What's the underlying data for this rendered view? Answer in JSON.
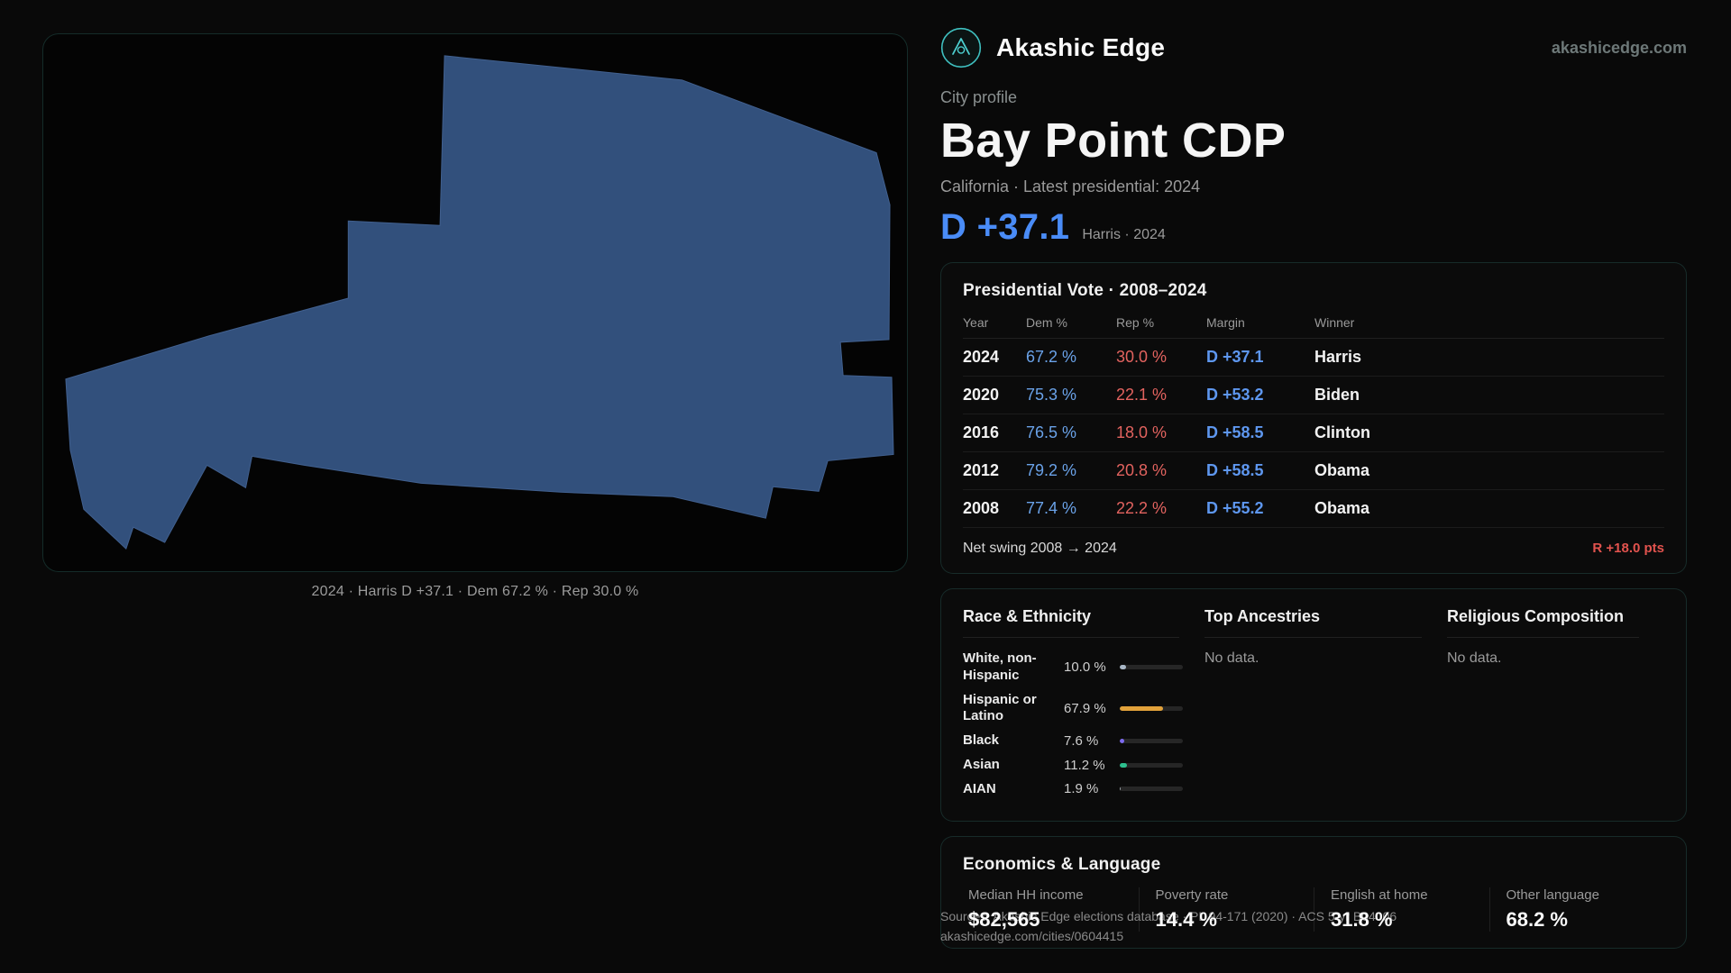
{
  "brand": {
    "name": "Akashic Edge",
    "domain": "akashicedge.com"
  },
  "profile": {
    "eyebrow": "City profile",
    "title": "Bay Point CDP",
    "subtitle": "California · Latest presidential: 2024",
    "headline_margin": "D +37.1",
    "headline_note": "Harris · 2024"
  },
  "map": {
    "caption": "2024 · Harris D +37.1 · Dem 67.2 % · Rep 30.0 %"
  },
  "elections": {
    "title": "Presidential Vote · 2008–2024",
    "columns": [
      "Year",
      "Dem %",
      "Rep %",
      "Margin",
      "Winner"
    ],
    "rows": [
      {
        "year": "2024",
        "dem": "67.2 %",
        "rep": "30.0 %",
        "margin": "D +37.1",
        "winner": "Harris"
      },
      {
        "year": "2020",
        "dem": "75.3 %",
        "rep": "22.1 %",
        "margin": "D +53.2",
        "winner": "Biden"
      },
      {
        "year": "2016",
        "dem": "76.5 %",
        "rep": "18.0 %",
        "margin": "D +58.5",
        "winner": "Clinton"
      },
      {
        "year": "2012",
        "dem": "79.2 %",
        "rep": "20.8 %",
        "margin": "D +58.5",
        "winner": "Obama"
      },
      {
        "year": "2008",
        "dem": "77.4 %",
        "rep": "22.2 %",
        "margin": "D +55.2",
        "winner": "Obama"
      }
    ],
    "net_swing_label": "Net swing 2008 → 2024",
    "net_swing_value": "R +18.0 pts"
  },
  "demographics": {
    "race_title": "Race & Ethnicity",
    "race_rows": [
      {
        "label": "White, non-Hispanic",
        "value": "10.0 %",
        "pct": 10.0,
        "color": "#a9b7c6"
      },
      {
        "label": "Hispanic or Latino",
        "value": "67.9 %",
        "pct": 67.9,
        "color": "#e2a23b"
      },
      {
        "label": "Black",
        "value": "7.6 %",
        "pct": 7.6,
        "color": "#7d6bf0"
      },
      {
        "label": "Asian",
        "value": "11.2 %",
        "pct": 11.2,
        "color": "#2dbf8e"
      },
      {
        "label": "AIAN",
        "value": "1.9 %",
        "pct": 1.9,
        "color": "#9aa0a6"
      }
    ],
    "ancestries_title": "Top Ancestries",
    "ancestries_empty": "No data.",
    "religion_title": "Religious Composition",
    "religion_empty": "No data."
  },
  "economics": {
    "title": "Economics & Language",
    "stats": [
      {
        "label": "Median HH income",
        "value": "$82,565"
      },
      {
        "label": "Poverty rate",
        "value": "14.4 %"
      },
      {
        "label": "English at home",
        "value": "31.8 %"
      },
      {
        "label": "Other language",
        "value": "68.2 %"
      }
    ]
  },
  "footer": {
    "sources": "Sources: Akashic Edge elections database · PL 94-171 (2020) · ACS 5-yr B04006",
    "permalink": "akashicedge.com/cities/0604415"
  },
  "colors": {
    "accent_teal": "#3fc0c0",
    "dem_blue": "#6aa2e8",
    "margin_blue": "#4a8cf7",
    "rep_red": "#e2635f",
    "swing_red": "#e2534e",
    "map_fill": "#32507c"
  }
}
